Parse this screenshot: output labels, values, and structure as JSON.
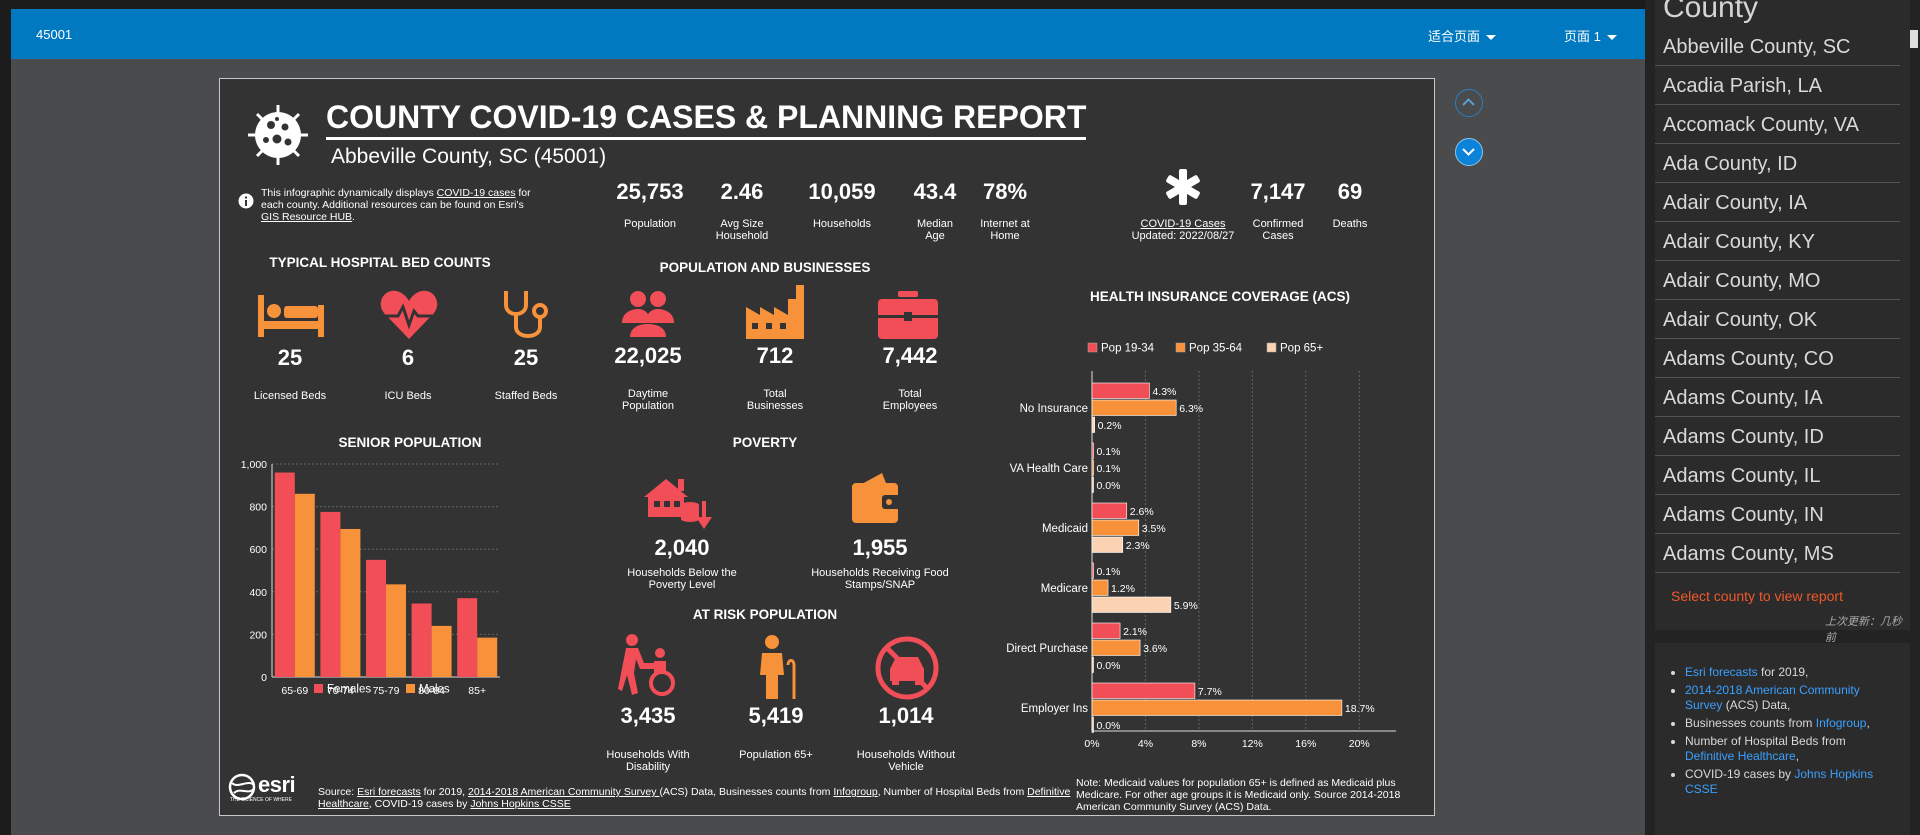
{
  "toolbar": {
    "id": "45001",
    "fit_label": "适合页面",
    "page_label": "页面 1"
  },
  "report": {
    "title": "COUNTY COVID-19 CASES & PLANNING REPORT",
    "subtitle": "Abbeville County, SC (45001)",
    "intro": {
      "text1": "This infographic dynamically displays ",
      "link1": "COVID-19 cases",
      "text2": " for each county.  Additional resources can be found on Esri's ",
      "link2": "GIS Resource HUB",
      "text3": "."
    },
    "stats": [
      {
        "value": "25,753",
        "label": "Population"
      },
      {
        "value": "2.46",
        "label": "Avg Size Household"
      },
      {
        "value": "10,059",
        "label": "Households"
      },
      {
        "value": "43.4",
        "label": "Median Age"
      },
      {
        "value": "78%",
        "label": "Internet at Home"
      }
    ],
    "covid": {
      "link": "COVID-19 Cases",
      "updated": "Updated: 2022/08/27",
      "confirmed_value": "7,147",
      "confirmed_label": "Confirmed Cases",
      "deaths_value": "69",
      "deaths_label": "Deaths"
    },
    "hospital": {
      "title": "TYPICAL HOSPITAL BED COUNTS",
      "items": [
        {
          "value": "25",
          "label": "Licensed Beds",
          "icon": "bed-icon"
        },
        {
          "value": "6",
          "label": "ICU Beds",
          "icon": "heart-pulse-icon"
        },
        {
          "value": "25",
          "label": "Staffed Beds",
          "icon": "stethoscope-icon"
        }
      ]
    },
    "popbiz": {
      "title": "POPULATION AND BUSINESSES",
      "items": [
        {
          "value": "22,025",
          "label": "Daytime Population",
          "icon": "people-icon"
        },
        {
          "value": "712",
          "label": "Total Businesses",
          "icon": "factory-icon"
        },
        {
          "value": "7,442",
          "label": "Total Employees",
          "icon": "briefcase-icon"
        }
      ]
    },
    "poverty": {
      "title": "POVERTY",
      "items": [
        {
          "value": "2,040",
          "label": "Households Below the Poverty Level",
          "icon": "house-coins-icon"
        },
        {
          "value": "1,955",
          "label": "Households Receiving Food Stamps/SNAP",
          "icon": "wallet-icon"
        }
      ]
    },
    "atrisk": {
      "title": "AT RISK POPULATION",
      "items": [
        {
          "value": "3,435",
          "label": "Households With Disability",
          "icon": "wheelchair-icon"
        },
        {
          "value": "5,419",
          "label": "Population 65+",
          "icon": "elderly-icon"
        },
        {
          "value": "1,014",
          "label": "Households Without Vehicle",
          "icon": "no-car-icon"
        }
      ]
    },
    "senior_title": "SENIOR POPULATION",
    "insurance_title": "HEALTH INSURANCE COVERAGE (ACS)",
    "insurance_note": "Note: Medicaid values for population 65+ is defined as Medicaid plus Medicare. For other age groups it is Medicaid only.  Source 2014-2018 American Community Survey (ACS) Data.",
    "source": {
      "t1": "Source: ",
      "l1": "Esri forecasts",
      "t2": " for  2019,  ",
      "l2": "2014-2018 American Community Survey ",
      "t3": "(ACS) Data, Businesses counts from ",
      "l3": "Infogroup",
      "t4": ", Number of Hospital Beds from ",
      "l4": "Definitive Healthcare",
      "t5": ", COVID-19  cases by ",
      "l5": "Johns Hopkins CSSE"
    },
    "esri": {
      "logo": "esri",
      "tagline": "THE SCIENCE OF WHERE"
    }
  },
  "colors": {
    "female": "#f24e58",
    "male": "#f7913a",
    "pop65": "#fcd3b2",
    "accent": "#0079c1",
    "link": "#3aa0ff",
    "select_msg": "#f0592a"
  },
  "chart_data": [
    {
      "type": "bar",
      "title": "SENIOR POPULATION",
      "categories": [
        "65-69",
        "70-74",
        "75-79",
        "80-84",
        "85+"
      ],
      "series": [
        {
          "name": "Females",
          "values": [
            960,
            775,
            550,
            345,
            370
          ]
        },
        {
          "name": "Males",
          "values": [
            860,
            695,
            435,
            240,
            185
          ]
        }
      ],
      "ylim": [
        0,
        1000
      ],
      "yticks": [
        "0",
        "200",
        "400",
        "600",
        "800",
        "1,000"
      ],
      "grid": true,
      "legend": "bottom"
    },
    {
      "type": "bar",
      "orientation": "horizontal",
      "title": "HEALTH INSURANCE COVERAGE (ACS)",
      "categories": [
        "No Insurance",
        "VA Health Care",
        "Medicaid",
        "Medicare",
        "Direct Purchase",
        "Employer Ins"
      ],
      "series": [
        {
          "name": "Pop 19-34",
          "values": [
            4.3,
            0.1,
            2.6,
            0.1,
            2.1,
            7.7
          ],
          "labels": [
            "4.3%",
            "0.1%",
            "2.6%",
            "0.1%",
            "2.1%",
            "7.7%"
          ]
        },
        {
          "name": "Pop 35-64",
          "values": [
            6.3,
            0.1,
            3.5,
            1.2,
            3.6,
            18.7
          ],
          "labels": [
            "6.3%",
            "0.1%",
            "3.5%",
            "1.2%",
            "3.6%",
            "18.7%"
          ]
        },
        {
          "name": "Pop 65+",
          "values": [
            0.2,
            0.0,
            2.3,
            5.9,
            0.0,
            0.0
          ],
          "labels": [
            "0.2%",
            "0.0%",
            "2.3%",
            "5.9%",
            "0.0%",
            "0.0%"
          ]
        }
      ],
      "xlim": [
        0,
        22
      ],
      "xticks": [
        "0%",
        "4%",
        "8%",
        "12%",
        "16%",
        "20%"
      ],
      "grid": true,
      "legend": "top"
    }
  ],
  "sidebar": {
    "header": "County",
    "counties": [
      "Abbeville County, SC",
      "Acadia Parish, LA",
      "Accomack County, VA",
      "Ada County, ID",
      "Adair County, IA",
      "Adair County, KY",
      "Adair County, MO",
      "Adair County, OK",
      "Adams County, CO",
      "Adams County, IA",
      "Adams County, ID",
      "Adams County, IL",
      "Adams County, IN",
      "Adams County, MS"
    ],
    "select_msg": "Select county to view report",
    "updated": "上次更新：几秒前"
  },
  "info": {
    "items": [
      {
        "link": "Esri forecasts",
        "text": " for 2019,"
      },
      {
        "link": "2014-2018 American Community Survey",
        "text": " (ACS) Data,"
      },
      {
        "text_before": "Businesses counts from ",
        "link": "Infogroup",
        "text": ","
      },
      {
        "text_before": "Number of Hospital Beds from ",
        "link": "Definitive Healthcare",
        "text": ","
      },
      {
        "text_before": "COVID-19 cases by ",
        "link": "Johns Hopkins CSSE",
        "text": ""
      }
    ]
  }
}
